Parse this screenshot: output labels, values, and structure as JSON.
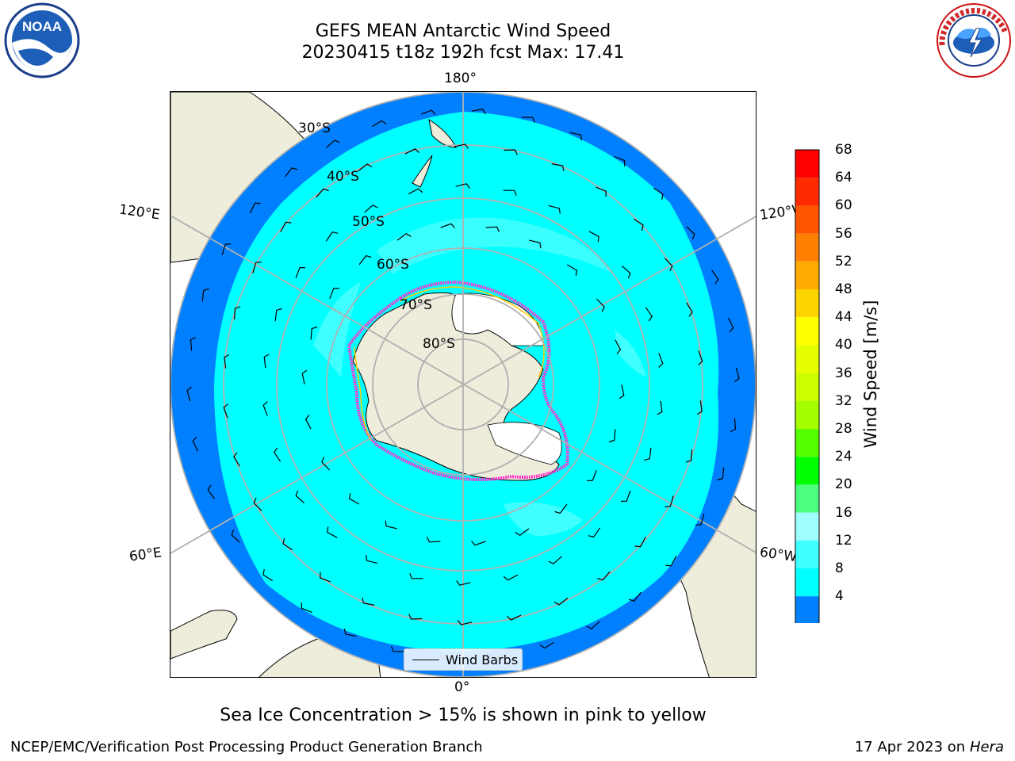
{
  "header": {
    "title_line1": "GEFS MEAN Antarctic Wind Speed",
    "title_line2": "20230415 t18z 192h fcst   Max: 17.41"
  },
  "logos": {
    "noaa_text": "NOAA",
    "nws_text": "NATIONAL WEATHER SERVICE"
  },
  "map": {
    "longitude_labels": {
      "top": "180°",
      "bottom": "0°",
      "upper_left": "120°E",
      "upper_right": "120°W",
      "lower_left": "60°E",
      "lower_right": "60°W"
    },
    "latitude_labels": [
      "30°S",
      "40°S",
      "50°S",
      "60°S",
      "70°S",
      "80°S"
    ],
    "legend_label": "Wind Barbs",
    "colors": {
      "land": "#eeecda",
      "ice_edge_pink": "#ff33cc",
      "ice_edge_yellow": "#ffcc00",
      "speed_4_8": "#0080ff",
      "speed_8_12": "#00ffff",
      "speed_12_16": "#40ffff",
      "grid": "#b0b0b0"
    }
  },
  "colorbar": {
    "label": "Wind Speed [m/s]",
    "ticks": [
      "68",
      "64",
      "60",
      "56",
      "52",
      "48",
      "44",
      "40",
      "36",
      "32",
      "28",
      "24",
      "20",
      "16",
      "12",
      "8",
      "4"
    ],
    "colors": [
      "#ff0000",
      "#ff2a00",
      "#ff5500",
      "#ff8000",
      "#ffaa00",
      "#ffd500",
      "#ffff00",
      "#e6ff00",
      "#cdff00",
      "#a5ff00",
      "#55ff00",
      "#00ff00",
      "#4cff80",
      "#9fffff",
      "#40ffff",
      "#00ffff",
      "#0080ff"
    ],
    "extend_color": "#0000ff"
  },
  "caption": "Sea Ice Concentration > 15% is shown in pink to yellow",
  "footer": {
    "left": "NCEP/EMC/Verification Post Processing Product Generation Branch",
    "right_date": "17 Apr 2023 on ",
    "right_machine": "Hera"
  }
}
